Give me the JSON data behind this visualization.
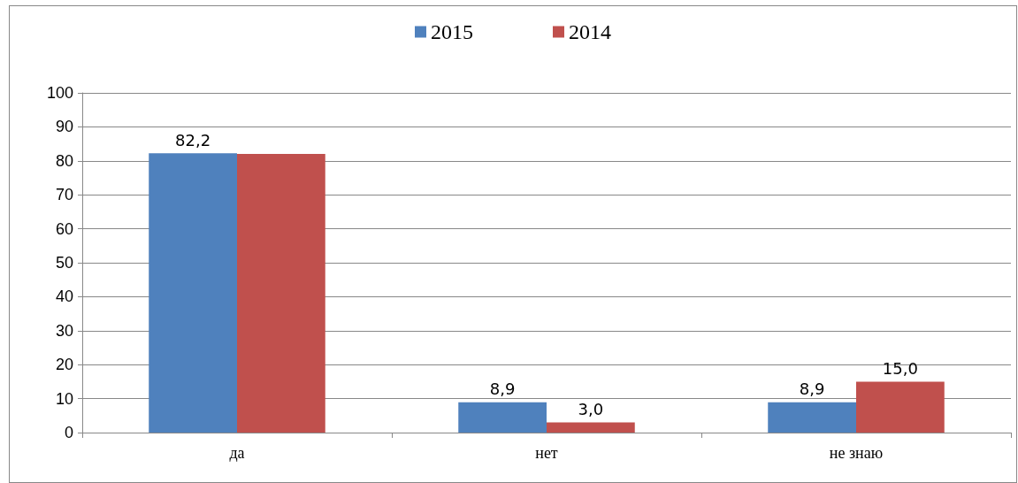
{
  "chart_data": {
    "type": "bar",
    "categories": [
      "да",
      "нет",
      "не знаю"
    ],
    "series": [
      {
        "name": "2015",
        "color": "#4f81bd",
        "values": [
          82.2,
          8.9,
          8.9
        ],
        "value_labels": [
          "82,2",
          "8,9",
          "8,9"
        ]
      },
      {
        "name": "2014",
        "color": "#c0504d",
        "values": [
          82.0,
          3.0,
          15.0
        ],
        "value_labels": [
          null,
          "3,0",
          "15,0"
        ]
      }
    ],
    "ylim": [
      0,
      100
    ],
    "yticks": [
      0,
      10,
      20,
      30,
      40,
      50,
      60,
      70,
      80,
      90,
      100
    ],
    "grid": "y",
    "legend": "top"
  }
}
